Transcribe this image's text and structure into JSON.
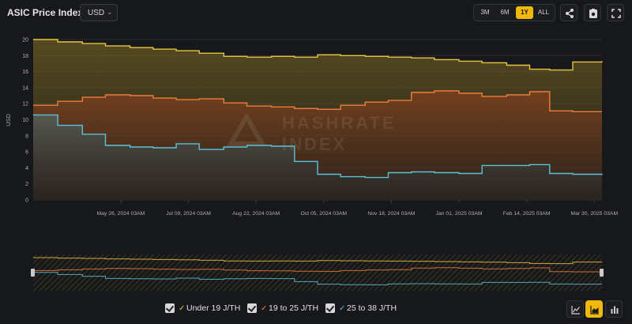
{
  "header": {
    "title": "ASIC Price Index",
    "currency": "USD",
    "ranges": [
      "3M",
      "6M",
      "1Y",
      "ALL"
    ],
    "active_range": "1Y"
  },
  "watermark": "HASHRATE INDEX",
  "legend": [
    {
      "label": "Under 19 J/TH",
      "color": "#e7c441"
    },
    {
      "label": "19 to 25 J/TH",
      "color": "#ec7d3a"
    },
    {
      "label": "25 to 38 J/TH",
      "color": "#5cc0d8"
    }
  ],
  "chart_data": {
    "type": "area",
    "title": "ASIC Price Index",
    "xlabel": "",
    "ylabel": "USD",
    "ylim": [
      0,
      20
    ],
    "yticks": [
      0,
      2,
      4,
      6,
      8,
      10,
      12,
      14,
      16,
      18,
      20
    ],
    "xlim": [
      "2024-03-30",
      "2025-04-04"
    ],
    "xticks": [
      {
        "date": "2024-05-26",
        "label": "May 26, 2024 03AM"
      },
      {
        "date": "2024-07-09",
        "label": "Jul 09, 2024 03AM"
      },
      {
        "date": "2024-08-22",
        "label": "Aug 22, 2024 03AM"
      },
      {
        "date": "2024-10-05",
        "label": "Oct 05, 2024 03AM"
      },
      {
        "date": "2024-11-18",
        "label": "Nov 18, 2024 03AM"
      },
      {
        "date": "2025-01-01",
        "label": "Jan 01, 2025 03AM"
      },
      {
        "date": "2025-02-14",
        "label": "Feb 14, 2025 03AM"
      },
      {
        "date": "2025-03-30",
        "label": "Mar 30, 2025 03AM"
      }
    ],
    "grid": true,
    "legend_position": "bottom",
    "series": [
      {
        "name": "Under 19 J/TH",
        "color": "#e7c441",
        "points": [
          [
            "2024-03-30",
            20.0
          ],
          [
            "2024-04-15",
            19.7
          ],
          [
            "2024-05-01",
            19.5
          ],
          [
            "2024-05-16",
            19.2
          ],
          [
            "2024-06-01",
            19.0
          ],
          [
            "2024-06-16",
            18.8
          ],
          [
            "2024-07-01",
            18.6
          ],
          [
            "2024-07-16",
            18.3
          ],
          [
            "2024-08-01",
            17.9
          ],
          [
            "2024-08-16",
            17.8
          ],
          [
            "2024-09-01",
            17.9
          ],
          [
            "2024-09-16",
            17.8
          ],
          [
            "2024-10-01",
            18.1
          ],
          [
            "2024-10-16",
            18.0
          ],
          [
            "2024-11-01",
            17.9
          ],
          [
            "2024-11-16",
            17.8
          ],
          [
            "2024-12-01",
            17.7
          ],
          [
            "2024-12-16",
            17.5
          ],
          [
            "2025-01-01",
            17.3
          ],
          [
            "2025-01-16",
            17.1
          ],
          [
            "2025-02-01",
            16.8
          ],
          [
            "2025-02-16",
            16.3
          ],
          [
            "2025-03-01",
            16.2
          ],
          [
            "2025-03-16",
            17.2
          ],
          [
            "2025-04-04",
            17.3
          ]
        ]
      },
      {
        "name": "19 to 25 J/TH",
        "color": "#ec7d3a",
        "points": [
          [
            "2024-03-30",
            11.8
          ],
          [
            "2024-04-15",
            12.3
          ],
          [
            "2024-05-01",
            12.8
          ],
          [
            "2024-05-16",
            13.1
          ],
          [
            "2024-06-01",
            13.0
          ],
          [
            "2024-06-16",
            12.7
          ],
          [
            "2024-07-01",
            12.5
          ],
          [
            "2024-07-16",
            12.6
          ],
          [
            "2024-08-01",
            12.1
          ],
          [
            "2024-08-16",
            11.7
          ],
          [
            "2024-09-01",
            11.6
          ],
          [
            "2024-09-16",
            11.4
          ],
          [
            "2024-10-01",
            11.3
          ],
          [
            "2024-10-16",
            11.8
          ],
          [
            "2024-11-01",
            12.2
          ],
          [
            "2024-11-16",
            12.4
          ],
          [
            "2024-12-01",
            13.4
          ],
          [
            "2024-12-16",
            13.6
          ],
          [
            "2025-01-01",
            13.3
          ],
          [
            "2025-01-16",
            12.9
          ],
          [
            "2025-02-01",
            13.1
          ],
          [
            "2025-02-16",
            13.5
          ],
          [
            "2025-03-01",
            11.1
          ],
          [
            "2025-03-16",
            11.0
          ],
          [
            "2025-04-04",
            11.0
          ]
        ]
      },
      {
        "name": "25 to 38 J/TH",
        "color": "#5cc0d8",
        "points": [
          [
            "2024-03-30",
            10.6
          ],
          [
            "2024-04-15",
            9.3
          ],
          [
            "2024-05-01",
            8.2
          ],
          [
            "2024-05-16",
            6.8
          ],
          [
            "2024-06-01",
            6.6
          ],
          [
            "2024-06-16",
            6.5
          ],
          [
            "2024-07-01",
            7.0
          ],
          [
            "2024-07-16",
            6.3
          ],
          [
            "2024-08-01",
            6.6
          ],
          [
            "2024-08-16",
            6.8
          ],
          [
            "2024-09-01",
            6.7
          ],
          [
            "2024-09-16",
            4.8
          ],
          [
            "2024-10-01",
            3.2
          ],
          [
            "2024-10-16",
            2.9
          ],
          [
            "2024-11-01",
            2.8
          ],
          [
            "2024-11-16",
            3.4
          ],
          [
            "2024-12-01",
            3.5
          ],
          [
            "2024-12-16",
            3.4
          ],
          [
            "2025-01-01",
            3.3
          ],
          [
            "2025-01-16",
            4.3
          ],
          [
            "2025-02-01",
            4.3
          ],
          [
            "2025-02-16",
            4.4
          ],
          [
            "2025-03-01",
            3.3
          ],
          [
            "2025-03-16",
            3.2
          ],
          [
            "2025-04-04",
            3.1
          ]
        ]
      }
    ]
  }
}
